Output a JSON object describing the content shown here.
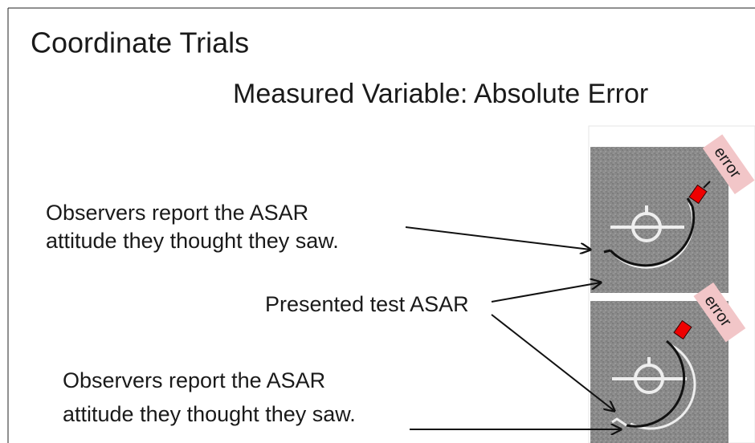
{
  "slide": {
    "title": "Coordinate Trials",
    "subtitle": "Measured Variable:  Absolute Error",
    "report_top": {
      "lines": [
        "Observers report the ASAR",
        "attitude they thought they saw."
      ]
    },
    "presented": "Presented test ASAR",
    "report_bottom": {
      "lines": [
        "Observers report the ASAR",
        "attitude they thought they saw."
      ]
    },
    "panels": [
      {
        "tag": "error"
      },
      {
        "tag": "error"
      }
    ]
  }
}
